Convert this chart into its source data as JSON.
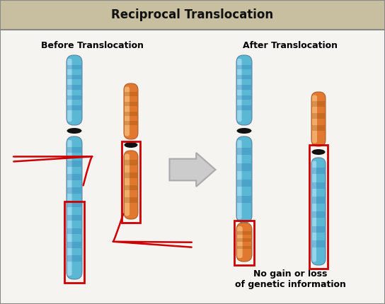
{
  "title": "Reciprocal Translocation",
  "title_bg": "#c8bfa0",
  "main_bg": "#f5f4f0",
  "border_color": "#888888",
  "before_label": "Before Translocation",
  "after_label": "After Translocation",
  "note_text": "No gain or loss\nof genetic information",
  "chr_blue": "#5ab8d5",
  "chr_blue_light": "#a8dff0",
  "chr_blue_lighter": "#d0f0ff",
  "chr_orange": "#e07830",
  "chr_orange_light": "#f0aa70",
  "centromere_color": "#111111",
  "red_box_color": "#cc0000",
  "arrow_gray": "#bbbbbb",
  "arrow_outline": "#999999"
}
